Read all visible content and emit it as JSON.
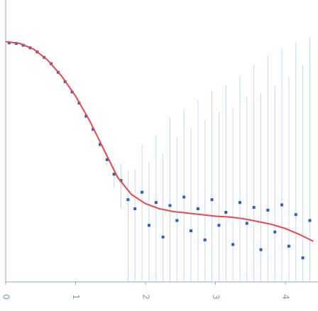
{
  "chart_data": {
    "type": "scatter",
    "log_y": true,
    "xlim": [
      0,
      4.4
    ],
    "ylim": [
      0.001,
      1
    ],
    "xticks": [
      0,
      1,
      2,
      3,
      4
    ],
    "series": [
      {
        "kind": "points",
        "color": "#2f5fb8",
        "error_color": "#c9d6f2",
        "x": [
          0.05,
          0.15,
          0.25,
          0.35,
          0.45,
          0.55,
          0.65,
          0.75,
          0.85,
          0.95,
          1.05,
          1.15,
          1.25,
          1.35,
          1.45,
          1.55,
          1.65,
          1.75,
          1.85,
          1.95,
          2.05,
          2.15,
          2.25,
          2.35,
          2.45,
          2.55,
          2.65,
          2.75,
          2.85,
          2.95,
          3.05,
          3.15,
          3.25,
          3.35,
          3.45,
          3.55,
          3.65,
          3.75,
          3.85,
          3.95,
          4.05,
          4.15,
          4.25,
          4.35
        ],
        "values": [
          0.35,
          0.345,
          0.33,
          0.31,
          0.28,
          0.245,
          0.21,
          0.17,
          0.135,
          0.105,
          0.08,
          0.058,
          0.042,
          0.029,
          0.02,
          0.014,
          0.012,
          0.0075,
          0.006,
          0.009,
          0.004,
          0.007,
          0.003,
          0.0065,
          0.0045,
          0.008,
          0.0035,
          0.006,
          0.0028,
          0.0075,
          0.004,
          0.0055,
          0.0025,
          0.007,
          0.0042,
          0.0062,
          0.0022,
          0.0058,
          0.0034,
          0.0066,
          0.0024,
          0.0052,
          0.0018,
          0.0045
        ],
        "errors": [
          0.002,
          0.002,
          0.002,
          0.002,
          0.002,
          0.002,
          0.002,
          0.002,
          0.002,
          0.002,
          0.002,
          0.002,
          0.002,
          0.002,
          0.003,
          0.004,
          0.006,
          0.008,
          0.01,
          0.02,
          0.015,
          0.03,
          0.02,
          0.05,
          0.03,
          0.06,
          0.04,
          0.08,
          0.05,
          0.1,
          0.06,
          0.12,
          0.07,
          0.15,
          0.09,
          0.2,
          0.1,
          0.25,
          0.12,
          0.3,
          0.15,
          0.35,
          0.2,
          0.4
        ]
      },
      {
        "kind": "fit",
        "color": "#e8474b",
        "x": [
          0,
          0.2,
          0.4,
          0.6,
          0.8,
          1.0,
          1.2,
          1.4,
          1.6,
          1.8,
          2.0,
          2.2,
          2.4,
          2.6,
          2.8,
          3.0,
          3.2,
          3.4,
          3.6,
          3.8,
          4.0,
          4.2,
          4.4
        ],
        "values": [
          0.36,
          0.345,
          0.3,
          0.23,
          0.155,
          0.095,
          0.052,
          0.026,
          0.013,
          0.0085,
          0.0068,
          0.006,
          0.0056,
          0.0054,
          0.0052,
          0.005,
          0.0049,
          0.0047,
          0.0044,
          0.0041,
          0.0037,
          0.0032,
          0.0027
        ]
      }
    ]
  }
}
